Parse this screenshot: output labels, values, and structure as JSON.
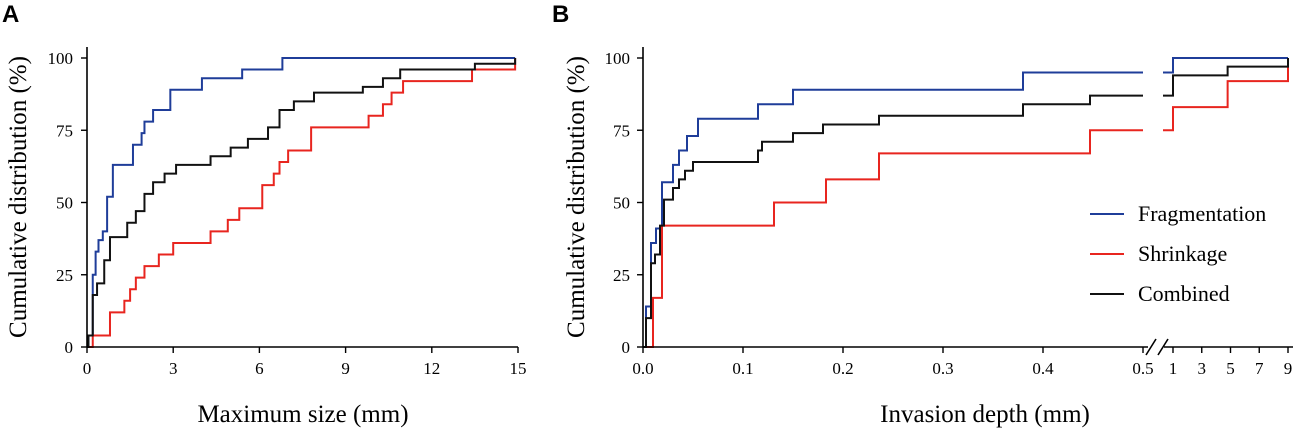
{
  "colors": {
    "fragmentation": "#1f3d99",
    "shrinkage": "#e8251f",
    "combined": "#111111"
  },
  "chart_data": [
    {
      "panel": "A",
      "type": "line",
      "step": true,
      "xlabel": "Maximum size (mm)",
      "ylabel": "Cumulative distribution (%)",
      "xlim": [
        0,
        15
      ],
      "ylim": [
        0,
        100
      ],
      "xticks": [
        0,
        3,
        6,
        9,
        12,
        15
      ],
      "yticks": [
        0,
        25,
        50,
        75,
        100
      ],
      "series": [
        {
          "name": "Fragmentation",
          "color_key": "fragmentation",
          "points": [
            [
              0.05,
              4
            ],
            [
              0.2,
              25
            ],
            [
              0.3,
              33
            ],
            [
              0.4,
              37
            ],
            [
              0.55,
              40
            ],
            [
              0.7,
              52
            ],
            [
              0.9,
              63
            ],
            [
              1.6,
              70
            ],
            [
              1.9,
              74
            ],
            [
              2.0,
              78
            ],
            [
              2.3,
              82
            ],
            [
              2.9,
              89
            ],
            [
              4.0,
              93
            ],
            [
              5.4,
              96
            ],
            [
              6.8,
              100
            ],
            [
              14.9,
              100
            ]
          ]
        },
        {
          "name": "Shrinkage",
          "color_key": "shrinkage",
          "points": [
            [
              0.2,
              4
            ],
            [
              0.8,
              12
            ],
            [
              1.3,
              16
            ],
            [
              1.5,
              20
            ],
            [
              1.7,
              24
            ],
            [
              2.0,
              28
            ],
            [
              2.5,
              32
            ],
            [
              3.0,
              36
            ],
            [
              4.3,
              40
            ],
            [
              4.9,
              44
            ],
            [
              5.3,
              48
            ],
            [
              6.1,
              56
            ],
            [
              6.5,
              60
            ],
            [
              6.7,
              64
            ],
            [
              7.0,
              68
            ],
            [
              7.8,
              76
            ],
            [
              9.8,
              80
            ],
            [
              10.3,
              84
            ],
            [
              10.6,
              88
            ],
            [
              11.0,
              92
            ],
            [
              13.4,
              96
            ],
            [
              14.9,
              100
            ]
          ]
        },
        {
          "name": "Combined",
          "color_key": "combined",
          "points": [
            [
              0.05,
              4
            ],
            [
              0.2,
              18
            ],
            [
              0.35,
              22
            ],
            [
              0.6,
              30
            ],
            [
              0.8,
              38
            ],
            [
              1.4,
              43
            ],
            [
              1.7,
              47
            ],
            [
              2.0,
              53
            ],
            [
              2.3,
              57
            ],
            [
              2.7,
              60
            ],
            [
              3.1,
              63
            ],
            [
              4.3,
              66
            ],
            [
              5.0,
              69
            ],
            [
              5.6,
              72
            ],
            [
              6.3,
              76
            ],
            [
              6.7,
              82
            ],
            [
              7.2,
              85
            ],
            [
              7.9,
              88
            ],
            [
              9.6,
              90
            ],
            [
              10.3,
              93
            ],
            [
              10.9,
              96
            ],
            [
              13.5,
              98
            ],
            [
              14.9,
              100
            ]
          ]
        }
      ]
    },
    {
      "panel": "B",
      "type": "line",
      "step": true,
      "broken_axis": true,
      "xlabel": "Invasion depth (mm)",
      "ylabel": "Cumulative distribution (%)",
      "xlim_left": [
        0,
        0.5
      ],
      "xlim_right": [
        1,
        9
      ],
      "ylim": [
        0,
        100
      ],
      "xticks_left": [
        0.0,
        0.1,
        0.2,
        0.3,
        0.4,
        0.5
      ],
      "xticks_left_labels": [
        "0.0",
        "0.1",
        "0.2",
        "0.3",
        "0.4",
        "0.5"
      ],
      "xticks_right": [
        1,
        3,
        5,
        7,
        9
      ],
      "yticks": [
        0,
        25,
        50,
        75,
        100
      ],
      "legend": [
        "Fragmentation",
        "Shrinkage",
        "Combined"
      ],
      "legend_position": "center-right",
      "series": [
        {
          "name": "Fragmentation",
          "color_key": "fragmentation",
          "points_left": [
            [
              0.003,
              14
            ],
            [
              0.008,
              36
            ],
            [
              0.013,
              41
            ],
            [
              0.019,
              57
            ],
            [
              0.03,
              63
            ],
            [
              0.036,
              68
            ],
            [
              0.044,
              73
            ],
            [
              0.055,
              79
            ],
            [
              0.115,
              84
            ],
            [
              0.15,
              89
            ],
            [
              0.38,
              95
            ],
            [
              0.5,
              95
            ]
          ],
          "points_right": [
            [
              1,
              100
            ],
            [
              9,
              100
            ]
          ]
        },
        {
          "name": "Shrinkage",
          "color_key": "shrinkage",
          "points_left": [
            [
              0.01,
              17
            ],
            [
              0.019,
              42
            ],
            [
              0.131,
              50
            ],
            [
              0.183,
              58
            ],
            [
              0.236,
              67
            ],
            [
              0.447,
              75
            ],
            [
              0.5,
              75
            ]
          ],
          "points_right": [
            [
              1,
              83
            ],
            [
              4.8,
              92
            ],
            [
              9,
              100
            ]
          ]
        },
        {
          "name": "Combined",
          "color_key": "combined",
          "points_left": [
            [
              0.003,
              10
            ],
            [
              0.008,
              29
            ],
            [
              0.012,
              32
            ],
            [
              0.017,
              42
            ],
            [
              0.021,
              51
            ],
            [
              0.03,
              55
            ],
            [
              0.036,
              58
            ],
            [
              0.042,
              61
            ],
            [
              0.05,
              64
            ],
            [
              0.115,
              68
            ],
            [
              0.119,
              71
            ],
            [
              0.15,
              74
            ],
            [
              0.18,
              77
            ],
            [
              0.236,
              80
            ],
            [
              0.38,
              84
            ],
            [
              0.447,
              87
            ],
            [
              0.5,
              87
            ]
          ],
          "points_right": [
            [
              1,
              94
            ],
            [
              4.8,
              97
            ],
            [
              9,
              100
            ]
          ]
        }
      ]
    }
  ]
}
